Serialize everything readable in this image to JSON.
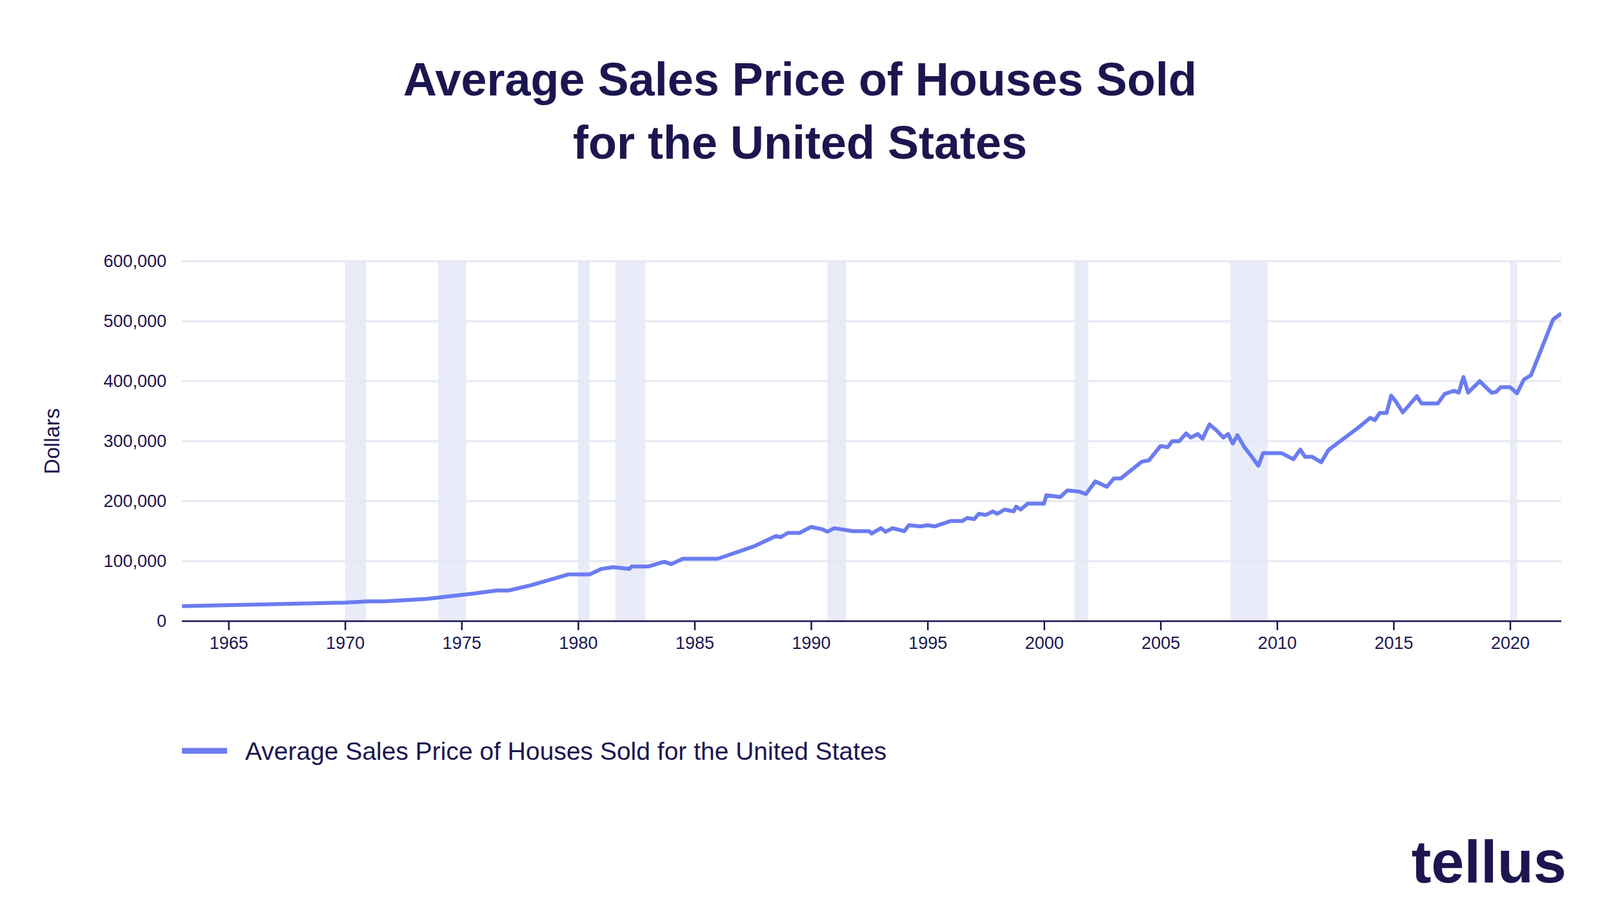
{
  "chart_data": {
    "type": "line",
    "title": "Average Sales Price of Houses Sold\nfor the United States",
    "y_label": "Dollars",
    "annotations": [
      "tellus"
    ],
    "grid": true,
    "legend": "bottom",
    "xlim": [
      1963,
      2022.2
    ],
    "xticks": [
      1965,
      1970,
      1975,
      1980,
      1985,
      1990,
      1995,
      2000,
      2005,
      2010,
      2015,
      2020
    ],
    "ylim": [
      0,
      600000
    ],
    "yticks": [
      0,
      {
        "value": 100000,
        "label": "100,000"
      },
      {
        "value": 200000,
        "label": "200,000"
      },
      {
        "value": 300000,
        "label": "300,000"
      },
      {
        "value": 400000,
        "label": "400,000"
      },
      {
        "value": 500000,
        "label": "500,000"
      },
      {
        "value": 600000,
        "label": "600,000"
      }
    ],
    "recessions": [
      [
        1970.0,
        1970.9
      ],
      [
        1974.0,
        1975.2
      ],
      [
        1980.0,
        1980.5
      ],
      [
        1981.6,
        1982.9
      ],
      [
        1990.7,
        1991.5
      ],
      [
        2001.3,
        2001.9
      ],
      [
        2008.0,
        2009.6
      ],
      [
        2020.0,
        2020.3
      ]
    ],
    "x": [
      1963.0,
      1970.0,
      1971.0,
      1971.7,
      1973.5,
      1975.5,
      1976.5,
      1977.0,
      1978.0,
      1979.6,
      1980.5,
      1981.0,
      1981.5,
      1982.2,
      1982.3,
      1983.0,
      1983.7,
      1984.0,
      1984.5,
      1986.0,
      1987.5,
      1988.5,
      1988.7,
      1989.0,
      1989.5,
      1990.0,
      1990.5,
      1990.7,
      1991.0,
      1991.8,
      1992.5,
      1992.6,
      1993.0,
      1993.2,
      1993.5,
      1994.0,
      1994.2,
      1994.7,
      1995.0,
      1995.3,
      1995.7,
      1996.0,
      1996.5,
      1996.7,
      1997.0,
      1997.2,
      1997.5,
      1997.8,
      1998.0,
      1998.3,
      1998.7,
      1998.8,
      1999.0,
      1999.3,
      2000.0,
      2000.1,
      2000.7,
      2001.0,
      2001.5,
      2001.8,
      2002.2,
      2002.7,
      2003.0,
      2003.3,
      2004.2,
      2004.5,
      2005.0,
      2005.3,
      2005.5,
      2005.8,
      2006.1,
      2006.3,
      2006.6,
      2006.8,
      2007.1,
      2007.4,
      2007.7,
      2007.9,
      2008.1,
      2008.3,
      2008.6,
      2008.9,
      2009.2,
      2009.4,
      2010.2,
      2010.7,
      2011.0,
      2011.2,
      2011.5,
      2011.9,
      2012.2,
      2013.5,
      2014.0,
      2014.2,
      2014.4,
      2014.7,
      2014.9,
      2015.1,
      2015.4,
      2015.8,
      2016.0,
      2016.2,
      2016.9,
      2017.2,
      2017.6,
      2017.8,
      2018.0,
      2018.2,
      2018.7,
      2019.2,
      2019.4,
      2019.6,
      2020.0,
      2020.3,
      2020.6,
      2020.9,
      2021.85,
      2022.2
    ],
    "series": [
      {
        "name": "Average Sales Price of Houses Sold for the United States",
        "color": "#6b7cf0",
        "values": [
          25000,
          31000,
          33000,
          33000,
          37000,
          46000,
          51000,
          51000,
          60000,
          78000,
          78000,
          87000,
          90000,
          87000,
          91000,
          91000,
          99000,
          95000,
          104000,
          104000,
          124000,
          142000,
          140000,
          147000,
          147000,
          157000,
          153000,
          149000,
          155000,
          150000,
          150000,
          146000,
          155000,
          149000,
          155000,
          150000,
          160000,
          158000,
          160000,
          158000,
          163000,
          167000,
          167000,
          172000,
          170000,
          179000,
          177000,
          183000,
          179000,
          186000,
          183000,
          191000,
          186000,
          196000,
          196000,
          210000,
          207000,
          218000,
          216000,
          212000,
          233000,
          224000,
          238000,
          238000,
          266000,
          268000,
          292000,
          290000,
          300000,
          300000,
          313000,
          306000,
          312000,
          304000,
          328000,
          318000,
          306000,
          312000,
          296000,
          310000,
          290000,
          275000,
          259000,
          280000,
          280000,
          270000,
          286000,
          274000,
          274000,
          265000,
          285000,
          323000,
          339000,
          335000,
          347000,
          347000,
          376000,
          366000,
          348000,
          366000,
          375000,
          363000,
          363000,
          379000,
          384000,
          381000,
          407000,
          381000,
          400000,
          381000,
          382000,
          390000,
          390000,
          380000,
          403000,
          410000,
          503000,
          513000
        ]
      }
    ]
  }
}
